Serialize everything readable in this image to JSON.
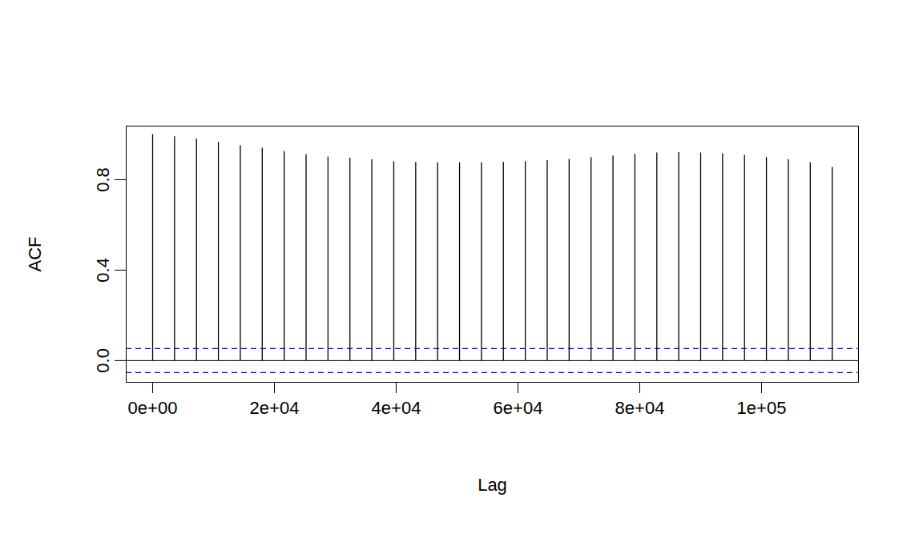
{
  "chart_data": {
    "type": "acf",
    "x_label": "Lag",
    "y_label": "ACF",
    "x": [
      0,
      3600,
      7200,
      10800,
      14400,
      18000,
      21600,
      25200,
      28800,
      32400,
      36000,
      39600,
      43200,
      46800,
      50400,
      54000,
      57600,
      61200,
      64800,
      68400,
      72000,
      75600,
      79200,
      82800,
      86400,
      90000,
      93600,
      97200,
      100800,
      104400,
      108000,
      111600
    ],
    "values": [
      1.0,
      0.99,
      0.98,
      0.965,
      0.95,
      0.94,
      0.925,
      0.91,
      0.9,
      0.895,
      0.888,
      0.88,
      0.877,
      0.875,
      0.875,
      0.875,
      0.877,
      0.88,
      0.885,
      0.89,
      0.898,
      0.905,
      0.912,
      0.918,
      0.92,
      0.918,
      0.915,
      0.908,
      0.898,
      0.888,
      0.875,
      0.855
    ],
    "color": "#000000",
    "confidence_bounds": [
      -0.053,
      0.053
    ],
    "confidence_color": "#0000ff",
    "confidence_line_style": "dashed",
    "xlim": [
      -4342,
      115921
    ],
    "ylim": [
      -0.096,
      1.037
    ],
    "xticks": [
      {
        "value": 0,
        "label": "0e+00"
      },
      {
        "value": 20000,
        "label": "2e+04"
      },
      {
        "value": 40000,
        "label": "4e+04"
      },
      {
        "value": 60000,
        "label": "6e+04"
      },
      {
        "value": 80000,
        "label": "8e+04"
      },
      {
        "value": 100000,
        "label": "1e+05"
      }
    ],
    "yticks": [
      {
        "value": 0,
        "label": "0.0"
      },
      {
        "value": 0.4,
        "label": "0.4"
      },
      {
        "value": 0.8,
        "label": "0.8"
      }
    ]
  }
}
